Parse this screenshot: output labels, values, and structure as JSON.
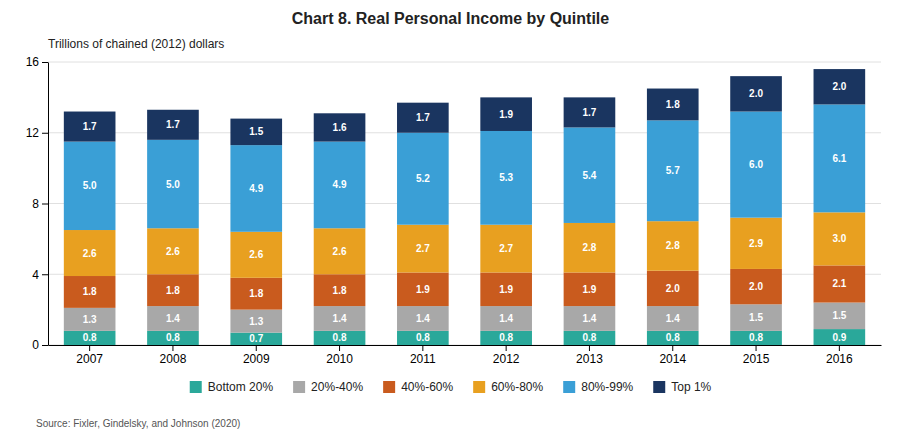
{
  "chart_data": {
    "type": "bar",
    "stacked": true,
    "title": "Chart 8. Real Personal Income by Quintile",
    "ylabel": "Trillions of chained (2012) dollars",
    "annotations": [
      "Source: Fixler, Gindelsky, and Johnson (2020)"
    ],
    "categories": [
      "2007",
      "2008",
      "2009",
      "2010",
      "2011",
      "2012",
      "2013",
      "2014",
      "2015",
      "2016"
    ],
    "series": [
      {
        "name": "Bottom 20%",
        "color": "#2aa89a",
        "values": [
          0.8,
          0.8,
          0.7,
          0.8,
          0.8,
          0.8,
          0.8,
          0.8,
          0.8,
          0.9
        ],
        "value_labels": [
          "0.8",
          "0.8",
          "0.7",
          "0.8",
          "0.8",
          "0.8",
          "0.8",
          "0.8",
          "0.8",
          "0.9"
        ]
      },
      {
        "name": "20%-40%",
        "color": "#a8a8a8",
        "values": [
          1.3,
          1.4,
          1.3,
          1.4,
          1.4,
          1.4,
          1.4,
          1.4,
          1.5,
          1.5
        ],
        "value_labels": [
          "1.3",
          "1.4",
          "1.3",
          "1.4",
          "1.4",
          "1.4",
          "1.4",
          "1.4",
          "1.5",
          "1.5"
        ]
      },
      {
        "name": "40%-60%",
        "color": "#c95b1e",
        "values": [
          1.8,
          1.8,
          1.8,
          1.8,
          1.9,
          1.9,
          1.9,
          2.0,
          2.0,
          2.1
        ],
        "value_labels": [
          "1.8",
          "1.8",
          "1.8",
          "1.8",
          "1.9",
          "1.9",
          "1.9",
          "2.0",
          "2.0",
          "2.1"
        ]
      },
      {
        "name": "60%-80%",
        "color": "#e8a020",
        "values": [
          2.6,
          2.6,
          2.6,
          2.6,
          2.7,
          2.7,
          2.8,
          2.8,
          2.9,
          3.0
        ],
        "value_labels": [
          "2.6",
          "2.6",
          "2.6",
          "2.6",
          "2.7",
          "2.7",
          "2.8",
          "2.8",
          "2.9",
          "3.0"
        ]
      },
      {
        "name": "80%-99%",
        "color": "#3a9fd6",
        "values": [
          5.0,
          5.0,
          4.9,
          4.9,
          5.2,
          5.3,
          5.4,
          5.7,
          6.0,
          6.1
        ],
        "value_labels": [
          "5.0",
          "5.0",
          "4.9",
          "4.9",
          "5.2",
          "5.3",
          "5.4",
          "5.7",
          "6.0",
          "6.1"
        ]
      },
      {
        "name": "Top 1%",
        "color": "#1a3560",
        "values": [
          1.7,
          1.7,
          1.5,
          1.6,
          1.7,
          1.9,
          1.7,
          1.8,
          2.0,
          2.0
        ],
        "value_labels": [
          "1.7",
          "1.7",
          "1.5",
          "1.6",
          "1.7",
          "1.9",
          "1.7",
          "1.8",
          "2.0",
          "2.0"
        ]
      }
    ],
    "ylim": [
      0,
      16
    ],
    "yticks": [
      0,
      4,
      8,
      12,
      16
    ],
    "grid": true,
    "legend": "bottom",
    "data_labels": true
  }
}
